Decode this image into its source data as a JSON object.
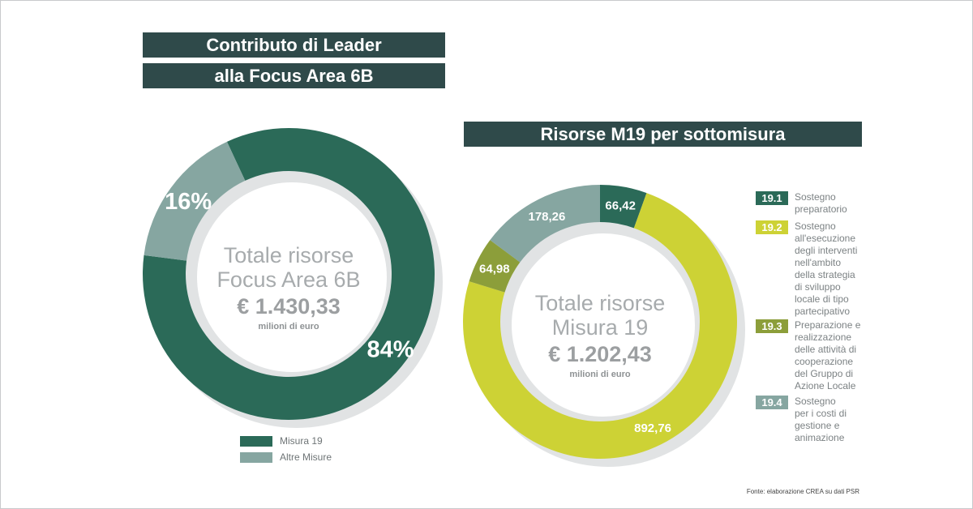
{
  "left_panel": {
    "title_line1": "Contributo di Leader",
    "title_line2": "alla Focus Area 6B"
  },
  "right_panel": {
    "title": "Risorse M19 per sottomisura"
  },
  "chart_data": [
    {
      "type": "pie",
      "donut": true,
      "slices": [
        {
          "label": "Misura 19",
          "value": 84,
          "display": "84%",
          "color": "#2b6a58"
        },
        {
          "label": "Altre Misure",
          "value": 16,
          "display": "16%",
          "color": "#86a6a1"
        }
      ],
      "center": {
        "line1": "Totale risorse",
        "line2": "Focus Area 6B",
        "amount": "€ 1.430,33",
        "unit": "milioni di euro"
      },
      "legend": [
        {
          "label": "Misura 19",
          "color": "#2b6a58"
        },
        {
          "label": "Altre Misure",
          "color": "#86a6a1"
        }
      ]
    },
    {
      "type": "pie",
      "donut": true,
      "slices": [
        {
          "code": "19.1",
          "value": 66.42,
          "display": "66,42",
          "color": "#2b6a58"
        },
        {
          "code": "19.2",
          "value": 892.76,
          "display": "892,76",
          "color": "#cdd235"
        },
        {
          "code": "19.3",
          "value": 64.98,
          "display": "64,98",
          "color": "#8c9e3a"
        },
        {
          "code": "19.4",
          "value": 178.26,
          "display": "178,26",
          "color": "#86a6a1"
        }
      ],
      "center": {
        "line1": "Totale risorse",
        "line2": "Misura 19",
        "amount": "€ 1.202,43",
        "unit": "milioni di euro"
      },
      "legend": [
        {
          "code": "19.1",
          "color": "#2b6a58",
          "text_color": "#ffffff",
          "lines": [
            "Sostegno",
            "preparatorio"
          ]
        },
        {
          "code": "19.2",
          "color": "#cdd235",
          "text_color": "#ffffff",
          "lines": [
            "Sostegno",
            "all'esecuzione",
            "degli interventi",
            "nell'ambito",
            "della strategia",
            "di sviluppo",
            "locale di tipo",
            "partecipativo"
          ]
        },
        {
          "code": "19.3",
          "color": "#8c9e3a",
          "text_color": "#ffffff",
          "lines": [
            "Preparazione e",
            "realizzazione",
            "delle attività di",
            "cooperazione",
            "del Gruppo di",
            "Azione Locale"
          ]
        },
        {
          "code": "19.4",
          "color": "#86a6a1",
          "text_color": "#ffffff",
          "lines": [
            "Sostegno",
            "per i costi di",
            "gestione e",
            "animazione"
          ]
        }
      ]
    }
  ],
  "source": "Fonte: elaborazione CREA su dati PSR"
}
